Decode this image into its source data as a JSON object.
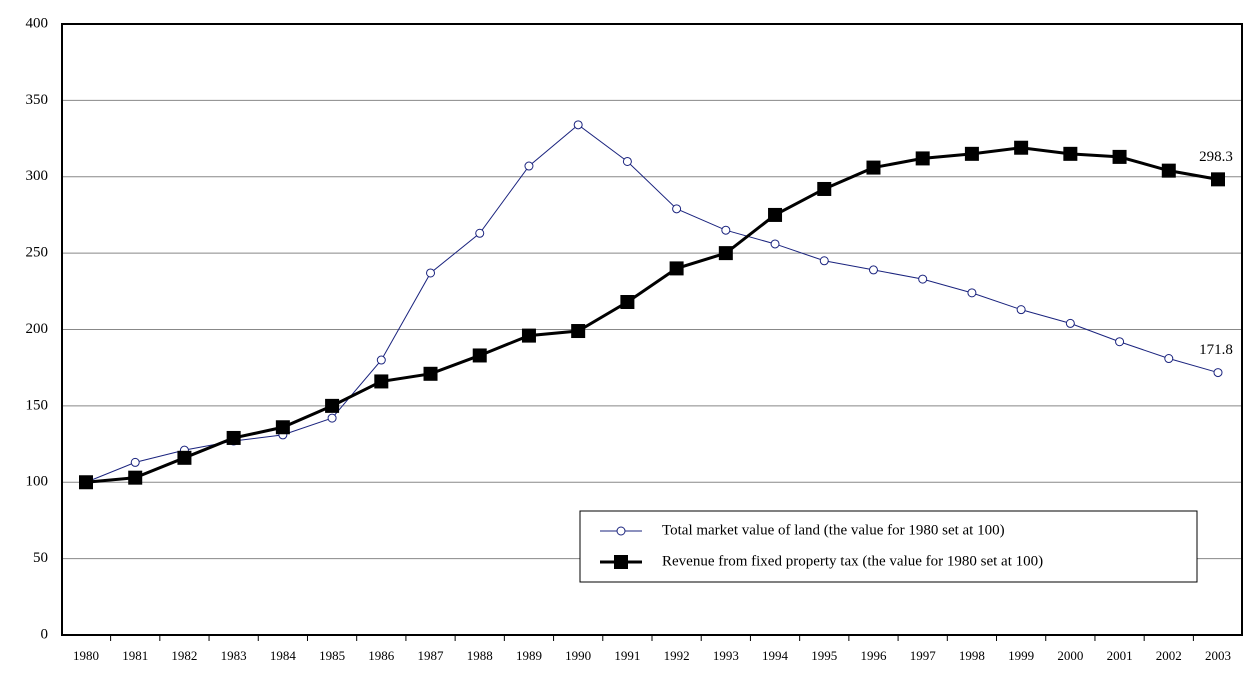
{
  "chart_data": {
    "type": "line",
    "categories": [
      "1980",
      "1981",
      "1982",
      "1983",
      "1984",
      "1985",
      "1986",
      "1987",
      "1988",
      "1989",
      "1990",
      "1991",
      "1992",
      "1993",
      "1994",
      "1995",
      "1996",
      "1997",
      "1998",
      "1999",
      "2000",
      "2001",
      "2002",
      "2003"
    ],
    "series": [
      {
        "name": "Total market value of land (the value for 1980 set at 100)",
        "color": "#1a237e",
        "marker": "circle",
        "values": [
          100,
          113,
          121,
          127,
          131,
          142,
          180,
          237,
          263,
          307,
          334,
          310,
          279,
          265,
          256,
          245,
          239,
          233,
          224,
          213,
          204,
          192,
          181,
          171.8
        ],
        "value_labels": [
          null,
          null,
          null,
          null,
          null,
          null,
          null,
          null,
          null,
          null,
          null,
          null,
          null,
          null,
          null,
          null,
          null,
          null,
          null,
          null,
          null,
          null,
          null,
          "171.8"
        ]
      },
      {
        "name": "Revenue from fixed property tax  (the value for 1980 set at 100)",
        "color": "#000000",
        "marker": "square",
        "values": [
          100,
          103,
          116,
          129,
          136,
          150,
          166,
          171,
          183,
          196,
          199,
          218,
          240,
          250,
          275,
          292,
          306,
          312,
          315,
          319,
          315,
          313,
          304,
          298.3
        ],
        "value_labels": [
          null,
          null,
          null,
          null,
          null,
          null,
          null,
          null,
          null,
          null,
          null,
          null,
          null,
          null,
          null,
          null,
          null,
          null,
          null,
          null,
          null,
          null,
          null,
          "298.3"
        ]
      }
    ],
    "ylim": [
      0,
      400
    ],
    "yticks": [
      0,
      50,
      100,
      150,
      200,
      250,
      300,
      350,
      400
    ],
    "grid": true,
    "legend": "lower right"
  }
}
